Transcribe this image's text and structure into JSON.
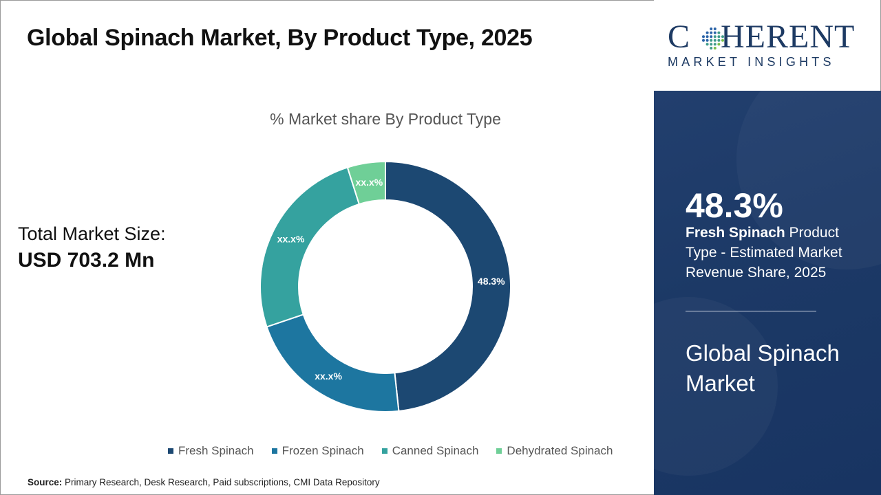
{
  "header": {
    "title": "Global Spinach Market, By Product Type, 2025"
  },
  "market_size": {
    "label": "Total Market Size:",
    "value": "USD 703.2 Mn"
  },
  "chart_data": {
    "type": "pie",
    "title": "% Market share By Product Type",
    "style": "donut",
    "categories": [
      "Fresh Spinach",
      "Frozen Spinach",
      "Canned Spinach",
      "Dehydrated Spinach"
    ],
    "values": [
      48.3,
      21.5,
      25.3,
      4.9
    ],
    "data_labels": [
      "48.3%",
      "xx.x%",
      "xx.x%",
      "xx.x%"
    ],
    "colors": [
      "#1c4872",
      "#1d76a0",
      "#35a29f",
      "#6fcf97"
    ],
    "legend_position": "bottom"
  },
  "source": {
    "label": "Source:",
    "text": " Primary Research, Desk Research, Paid subscriptions, CMI Data Repository"
  },
  "logo": {
    "main_prefix": "C",
    "main_suffix": "HERENT",
    "sub": "MARKET INSIGHTS"
  },
  "side_panel": {
    "stat_value": "48.3%",
    "stat_bold": "Fresh Spinach",
    "stat_text": " Product Type - Estimated Market Revenue Share, 2025",
    "market_name": "Global Spinach Market"
  }
}
